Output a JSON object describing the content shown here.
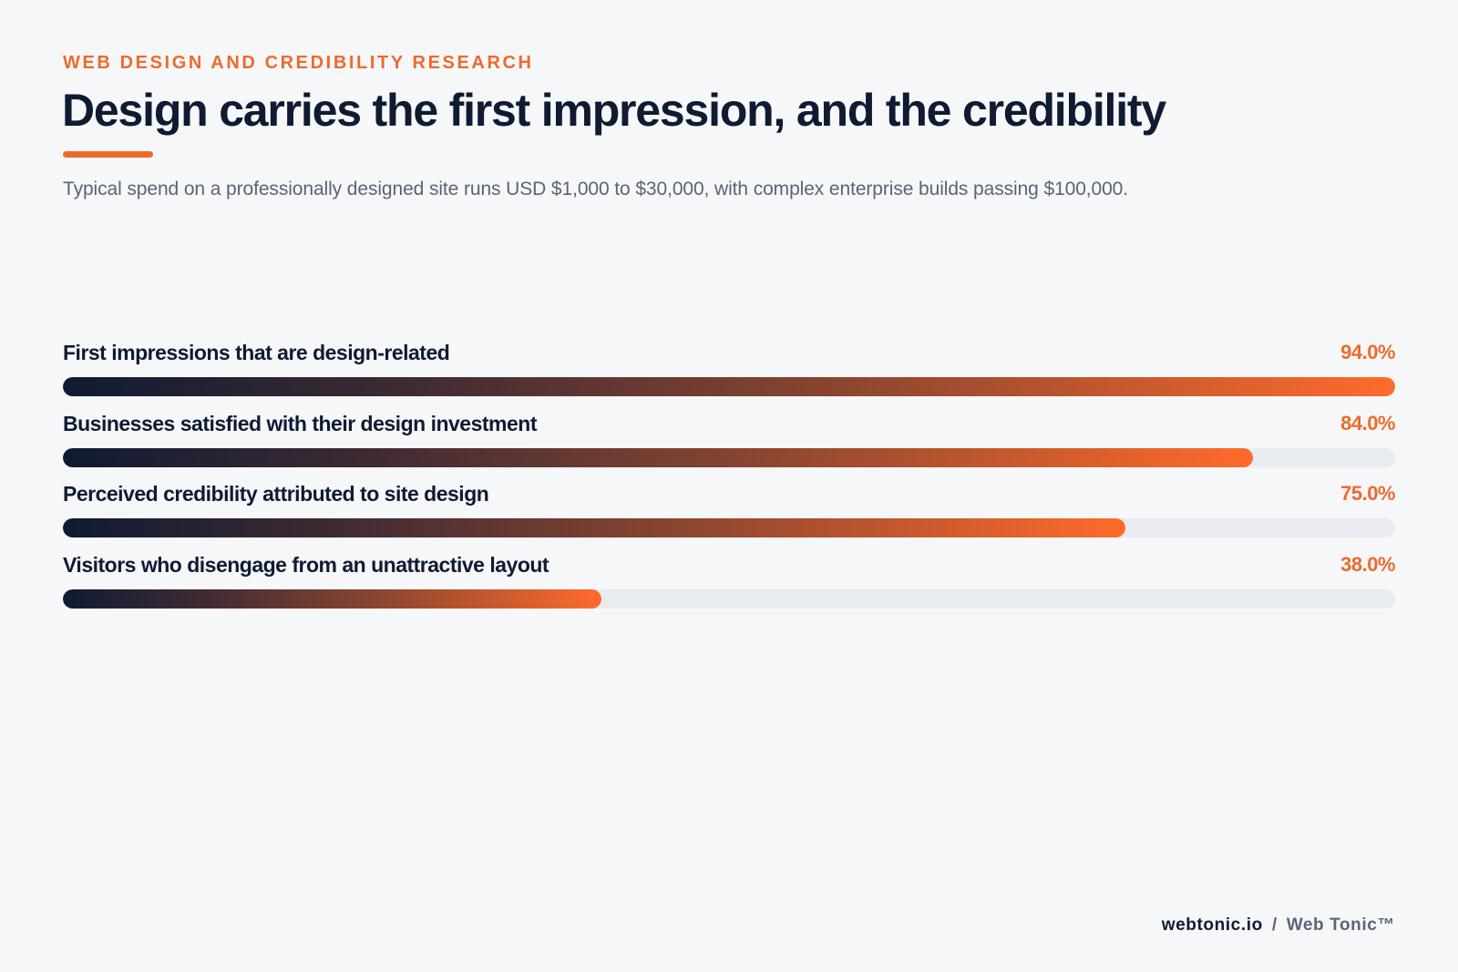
{
  "header": {
    "eyebrow": "WEB DESIGN AND CREDIBILITY RESEARCH",
    "title": "Design carries the first impression, and the credibility",
    "subtitle": "Typical spend on a professionally designed site runs USD $1,000 to $30,000, with complex enterprise builds passing $100,000."
  },
  "colors": {
    "accent": "#ee6a2c",
    "navy": "#0f1b33",
    "muted": "#5a6478",
    "track": "#e8ebef",
    "background": "#f6f7f9"
  },
  "chart_data": {
    "type": "bar",
    "orientation": "horizontal",
    "categories": [
      "First impressions that are design-related",
      "Businesses satisfied with their design investment",
      "Perceived credibility attributed to site design",
      "Visitors who disengage from an unattractive layout"
    ],
    "values": [
      94.0,
      84.0,
      75.0,
      38.0
    ],
    "value_labels": [
      "94.0%",
      "84.0%",
      "75.0%",
      "38.0%"
    ],
    "xlim": [
      0,
      94
    ],
    "grid": false
  },
  "footer": {
    "domain": "webtonic.io",
    "separator": "/",
    "brand": "Web Tonic™"
  }
}
